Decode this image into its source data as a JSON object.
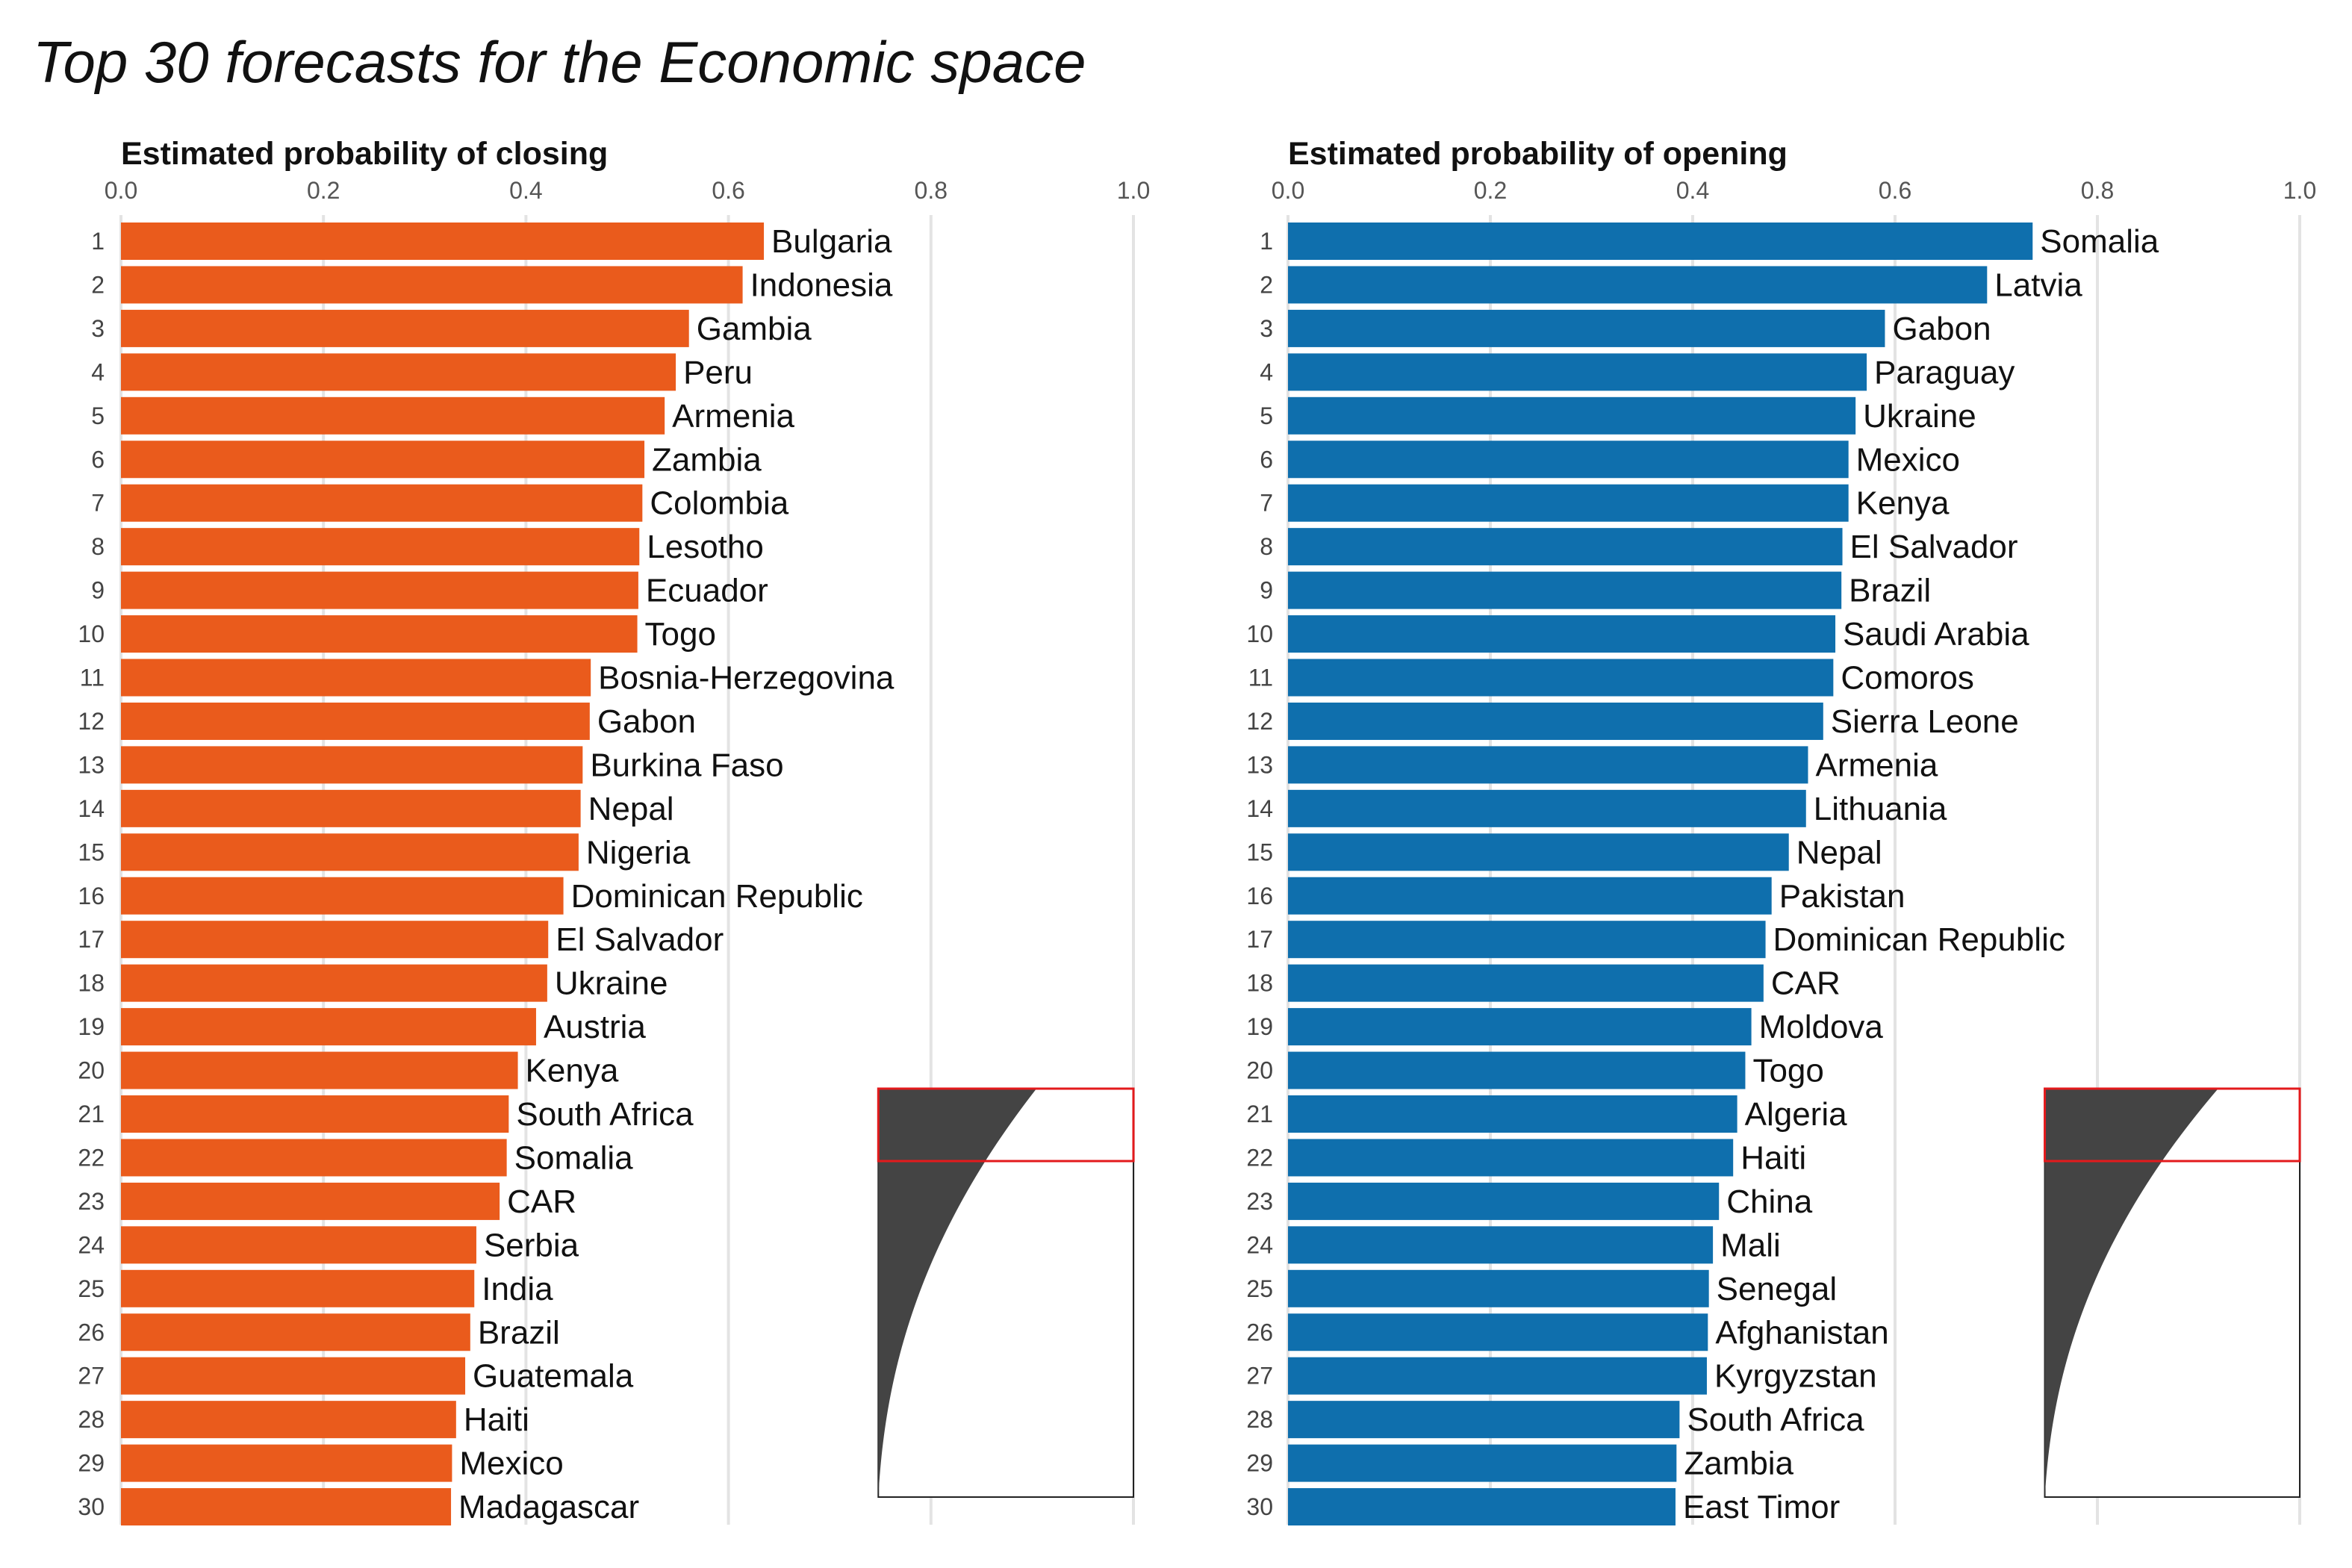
{
  "title": "Top 30 forecasts for the Economic space",
  "chart_data": [
    {
      "type": "bar",
      "orientation": "horizontal",
      "title": "Estimated probability of closing",
      "xlim": [
        0,
        1.0
      ],
      "x_ticks": [
        "0.0",
        "0.2",
        "0.4",
        "0.6",
        "0.8",
        "1.0"
      ],
      "grid": "vertical",
      "color": "#ea5b1c",
      "ranks": [
        1,
        2,
        3,
        4,
        5,
        6,
        7,
        8,
        9,
        10,
        11,
        12,
        13,
        14,
        15,
        16,
        17,
        18,
        19,
        20,
        21,
        22,
        23,
        24,
        25,
        26,
        27,
        28,
        29,
        30
      ],
      "categories": [
        "Bulgaria",
        "Indonesia",
        "Gambia",
        "Peru",
        "Armenia",
        "Zambia",
        "Colombia",
        "Lesotho",
        "Ecuador",
        "Togo",
        "Bosnia-Herzegovina",
        "Gabon",
        "Burkina Faso",
        "Nepal",
        "Nigeria",
        "Dominican Republic",
        "El Salvador",
        "Ukraine",
        "Austria",
        "Kenya",
        "South Africa",
        "Somalia",
        "CAR",
        "Serbia",
        "India",
        "Brazil",
        "Guatemala",
        "Haiti",
        "Mexico",
        "Madagascar"
      ],
      "values": [
        0.635,
        0.614,
        0.561,
        0.548,
        0.537,
        0.517,
        0.515,
        0.512,
        0.511,
        0.51,
        0.464,
        0.463,
        0.456,
        0.454,
        0.452,
        0.437,
        0.422,
        0.421,
        0.41,
        0.392,
        0.383,
        0.381,
        0.374,
        0.351,
        0.349,
        0.345,
        0.34,
        0.331,
        0.327,
        0.326
      ],
      "inset": {
        "type": "area",
        "description_note": "",
        "highlight": "top 30",
        "color": "#444444",
        "highlight_color": "#e31a1c"
      }
    },
    {
      "type": "bar",
      "orientation": "horizontal",
      "title": "Estimated probability of opening",
      "xlim": [
        0,
        1.0
      ],
      "x_ticks": [
        "0.0",
        "0.2",
        "0.4",
        "0.6",
        "0.8",
        "1.0"
      ],
      "grid": "vertical",
      "color": "#0f6fad",
      "ranks": [
        1,
        2,
        3,
        4,
        5,
        6,
        7,
        8,
        9,
        10,
        11,
        12,
        13,
        14,
        15,
        16,
        17,
        18,
        19,
        20,
        21,
        22,
        23,
        24,
        25,
        26,
        27,
        28,
        29,
        30
      ],
      "categories": [
        "Somalia",
        "Latvia",
        "Gabon",
        "Paraguay",
        "Ukraine",
        "Mexico",
        "Kenya",
        "El Salvador",
        "Brazil",
        "Saudi Arabia",
        "Comoros",
        "Sierra Leone",
        "Armenia",
        "Lithuania",
        "Nepal",
        "Pakistan",
        "Dominican Republic",
        "CAR",
        "Moldova",
        "Togo",
        "Algeria",
        "Haiti",
        "China",
        "Mali",
        "Senegal",
        "Afghanistan",
        "Kyrgyzstan",
        "South Africa",
        "Zambia",
        "East Timor"
      ],
      "values": [
        0.736,
        0.691,
        0.59,
        0.572,
        0.561,
        0.554,
        0.554,
        0.548,
        0.547,
        0.541,
        0.539,
        0.529,
        0.514,
        0.512,
        0.495,
        0.478,
        0.472,
        0.47,
        0.458,
        0.452,
        0.444,
        0.44,
        0.426,
        0.42,
        0.416,
        0.415,
        0.414,
        0.387,
        0.384,
        0.383
      ],
      "inset": {
        "type": "area",
        "highlight": "top 30",
        "color": "#444444",
        "highlight_color": "#e31a1c"
      }
    }
  ]
}
